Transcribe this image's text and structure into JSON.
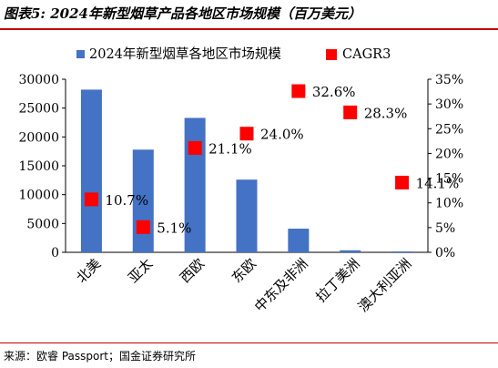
{
  "title": "图表5: 2024年新型烟草产品各地区市场规模（百万美元）",
  "source": "来源：欧睿 Passport；国金证券研究所",
  "chart_data": {
    "type": "bar",
    "categories": [
      "北美",
      "亚太",
      "西欧",
      "东欧",
      "中东及非洲",
      "拉丁美洲",
      "澳大利亚洲"
    ],
    "series": [
      {
        "name": "2024年新型烟草各地区市场规模",
        "kind": "bar",
        "axis": "left",
        "color": "#4472c4",
        "values": [
          28200,
          17800,
          23300,
          12600,
          4100,
          350,
          150
        ]
      },
      {
        "name": "CAGR3",
        "kind": "marker",
        "axis": "right",
        "color": "#ff0000",
        "values": [
          10.7,
          5.1,
          21.1,
          24.0,
          32.6,
          28.3,
          14.1
        ],
        "labels": [
          "10.7%",
          "5.1%",
          "21.1%",
          "24.0%",
          "32.6%",
          "28.3%",
          "14.1%"
        ]
      }
    ],
    "y_left": {
      "ylim": [
        0,
        30000
      ],
      "ticks": [
        "0",
        "5000",
        "10000",
        "15000",
        "20000",
        "25000",
        "30000"
      ]
    },
    "y_right": {
      "ylim": [
        0,
        35
      ],
      "ticks": [
        "0%",
        "5%",
        "10%",
        "15%",
        "20%",
        "25%",
        "30%",
        "35%"
      ]
    },
    "legend_position": "top",
    "grid": false
  }
}
